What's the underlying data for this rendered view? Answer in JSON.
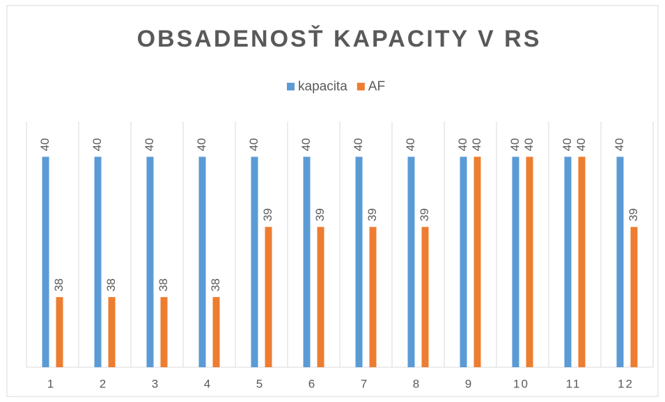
{
  "chart_data": {
    "type": "bar",
    "title": "OBSADENOSŤ KAPACITY V RS",
    "categories": [
      "1",
      "2",
      "3",
      "4",
      "5",
      "6",
      "7",
      "8",
      "9",
      "10",
      "11",
      "12"
    ],
    "series": [
      {
        "name": "kapacita",
        "color": "#5b9bd5",
        "values": [
          40,
          40,
          40,
          40,
          40,
          40,
          40,
          40,
          40,
          40,
          40,
          40
        ]
      },
      {
        "name": "AF",
        "color": "#ed7d31",
        "values": [
          38,
          38,
          38,
          38,
          39,
          39,
          39,
          39,
          40,
          40,
          40,
          39
        ]
      }
    ],
    "ylim": [
      37,
      40.5
    ],
    "legend": "top"
  }
}
